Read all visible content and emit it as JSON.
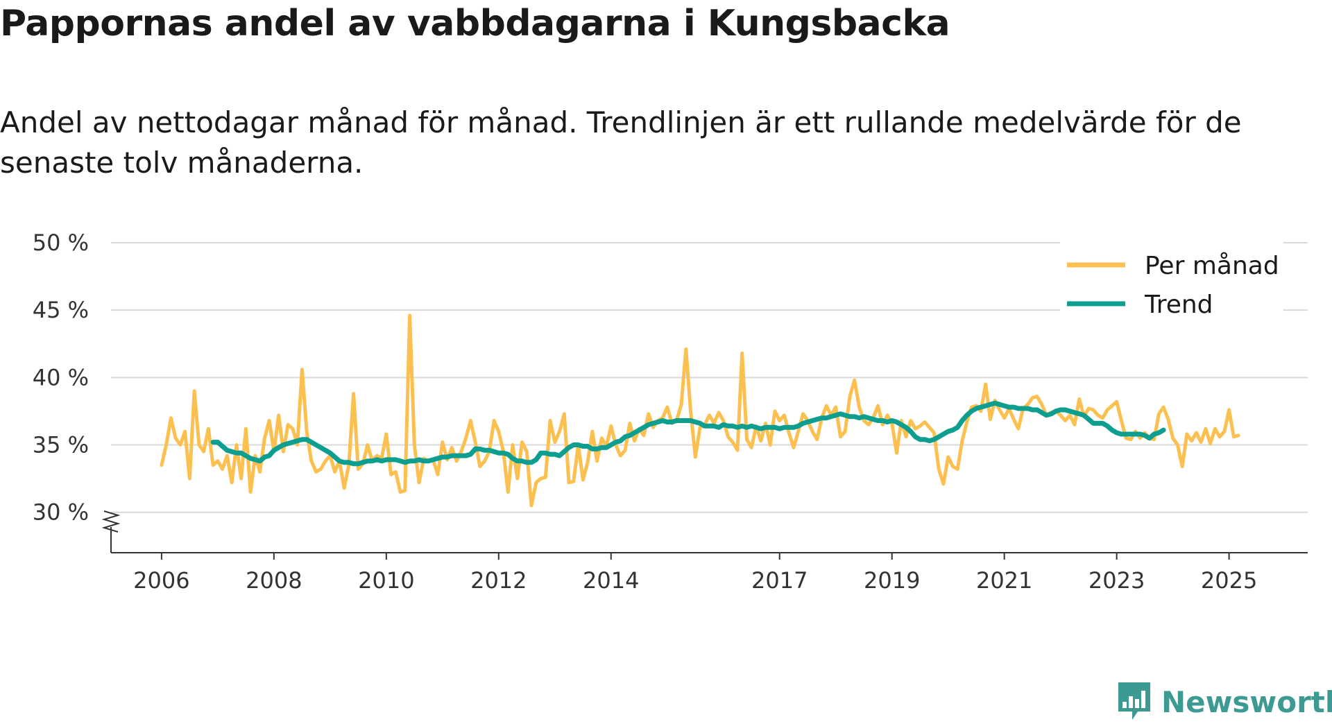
{
  "brand": {
    "name": "Newsworthy",
    "icon": "newsworthy-logo-icon",
    "color": "#3d9a93"
  },
  "colors": {
    "monthly": "#fbc04f",
    "trend": "#0e9e8f",
    "grid": "#d9d9d9",
    "axis": "#333333"
  },
  "chart_data": {
    "type": "line",
    "title": "Pappornas andel av vabbdagarna i Kungsbacka",
    "subtitle": "Andel av nettodagar månad för månad. Trendlinjen är ett rullande medelvärde för de senaste tolv månaderna.",
    "xlabel": "",
    "ylabel": "",
    "x_start": "2006-01",
    "xlim": [
      2005.1,
      2026.4
    ],
    "ylim": [
      27,
      50
    ],
    "y_ticks": [
      30,
      35,
      40,
      45,
      50
    ],
    "y_tick_labels": [
      "30 %",
      "35 %",
      "40 %",
      "45 %",
      "50 %"
    ],
    "x_ticks": [
      2006,
      2008,
      2010,
      2012,
      2014,
      2017,
      2019,
      2021,
      2023,
      2025
    ],
    "x_tick_labels": [
      "2006",
      "2008",
      "2010",
      "2012",
      "2014",
      "2017",
      "2019",
      "2021",
      "2023",
      "2025"
    ],
    "axis_break": true,
    "grid": true,
    "legend": {
      "position": "top-right",
      "entries": [
        "Per månad",
        "Trend"
      ]
    },
    "series": [
      {
        "name": "Per månad",
        "values": [
          33.5,
          35.0,
          37.0,
          35.5,
          35.0,
          36.0,
          32.5,
          39.0,
          35.0,
          34.5,
          36.2,
          33.5,
          33.8,
          33.2,
          34.2,
          32.2,
          35.0,
          32.5,
          36.2,
          31.5,
          34.2,
          33.0,
          35.5,
          36.8,
          34.5,
          37.2,
          34.5,
          36.5,
          36.2,
          35.0,
          40.6,
          36.0,
          33.8,
          33.0,
          33.2,
          33.8,
          34.2,
          33.0,
          33.8,
          31.8,
          33.5,
          38.8,
          33.2,
          33.6,
          35.0,
          33.8,
          34.2,
          34.0,
          35.8,
          32.8,
          33.0,
          31.5,
          31.6,
          44.6,
          35.0,
          32.2,
          34.0,
          33.8,
          33.9,
          32.8,
          35.2,
          33.9,
          34.8,
          33.8,
          34.5,
          35.5,
          36.8,
          35.2,
          33.4,
          33.8,
          34.5,
          36.8,
          36.0,
          34.5,
          31.5,
          35.0,
          32.5,
          35.2,
          34.5,
          30.5,
          32.2,
          32.5,
          32.6,
          36.8,
          35.2,
          36.0,
          37.3,
          32.2,
          32.3,
          35.0,
          32.4,
          33.7,
          36.0,
          33.8,
          35.5,
          34.9,
          36.4,
          35.0,
          34.2,
          34.6,
          36.6,
          35.3,
          36.2,
          35.7,
          37.3,
          36.3,
          36.8,
          37.0,
          37.8,
          36.6,
          36.8,
          38.0,
          42.1,
          37.5,
          34.1,
          36.3,
          36.5,
          37.2,
          36.6,
          37.4,
          36.8,
          35.6,
          35.2,
          34.6,
          41.8,
          35.4,
          34.8,
          36.4,
          35.3,
          36.6,
          35.0,
          37.5,
          36.8,
          37.2,
          35.9,
          34.8,
          36.0,
          37.3,
          36.8,
          36.0,
          35.4,
          37.0,
          37.9,
          37.2,
          37.8,
          35.6,
          36.0,
          38.6,
          39.8,
          37.8,
          36.8,
          36.5,
          37.0,
          37.9,
          36.5,
          37.2,
          36.6,
          34.4,
          36.8,
          35.6,
          36.8,
          36.2,
          36.4,
          36.7,
          36.3,
          35.9,
          33.2,
          32.1,
          34.1,
          33.4,
          33.2,
          35.3,
          36.7,
          37.8,
          37.9,
          37.5,
          39.5,
          36.9,
          38.3,
          37.6,
          37.0,
          37.7,
          36.9,
          36.2,
          37.7,
          38.0,
          38.5,
          38.6,
          38.0,
          37.2,
          37.4,
          37.5,
          37.2,
          36.8,
          37.2,
          36.5,
          38.4,
          37.1,
          37.7,
          37.6,
          37.2,
          37.0,
          37.6,
          37.9,
          38.2,
          36.8,
          35.5,
          35.4,
          36.0,
          35.5,
          35.9,
          35.5,
          35.4,
          37.3,
          37.8,
          36.9,
          35.5,
          35.0,
          33.4,
          35.8,
          35.3,
          35.9,
          35.2,
          36.2,
          35.1,
          36.2,
          35.6,
          36.0,
          37.6,
          35.6,
          35.7
        ]
      },
      {
        "name": "Trend",
        "start_index": 11,
        "values": [
          35.2,
          35.2,
          34.9,
          34.6,
          34.5,
          34.4,
          34.4,
          34.2,
          34.0,
          33.9,
          33.8,
          34.1,
          34.2,
          34.6,
          34.8,
          35.0,
          35.1,
          35.2,
          35.3,
          35.4,
          35.4,
          35.2,
          35.0,
          34.8,
          34.6,
          34.4,
          34.1,
          33.8,
          33.7,
          33.7,
          33.6,
          33.6,
          33.7,
          33.8,
          33.8,
          33.9,
          33.8,
          33.9,
          33.9,
          33.9,
          33.8,
          33.7,
          33.8,
          33.8,
          33.9,
          33.8,
          33.8,
          33.9,
          34.0,
          34.1,
          34.1,
          34.2,
          34.2,
          34.2,
          34.2,
          34.3,
          34.7,
          34.7,
          34.6,
          34.6,
          34.5,
          34.4,
          34.4,
          34.3,
          34.0,
          33.8,
          33.8,
          33.7,
          33.7,
          33.9,
          34.4,
          34.4,
          34.3,
          34.3,
          34.2,
          34.5,
          34.8,
          35.0,
          35.0,
          34.9,
          34.9,
          34.7,
          34.7,
          34.8,
          34.8,
          35.0,
          35.2,
          35.3,
          35.6,
          35.7,
          35.9,
          36.1,
          36.3,
          36.5,
          36.6,
          36.7,
          36.8,
          36.7,
          36.7,
          36.8,
          36.8,
          36.8,
          36.8,
          36.7,
          36.6,
          36.4,
          36.4,
          36.4,
          36.3,
          36.5,
          36.4,
          36.4,
          36.3,
          36.4,
          36.3,
          36.4,
          36.3,
          36.2,
          36.3,
          36.3,
          36.3,
          36.2,
          36.3,
          36.3,
          36.3,
          36.4,
          36.6,
          36.7,
          36.8,
          36.9,
          37.0,
          37.0,
          37.1,
          37.2,
          37.3,
          37.2,
          37.1,
          37.1,
          37.0,
          37.1,
          37.0,
          36.9,
          36.8,
          36.8,
          36.7,
          36.8,
          36.7,
          36.5,
          36.3,
          36.0,
          35.6,
          35.4,
          35.4,
          35.3,
          35.4,
          35.6,
          35.8,
          36.0,
          36.1,
          36.3,
          36.8,
          37.2,
          37.5,
          37.7,
          37.8,
          37.9,
          38.0,
          38.1,
          38.0,
          37.9,
          37.8,
          37.8,
          37.7,
          37.7,
          37.7,
          37.6,
          37.6,
          37.4,
          37.2,
          37.3,
          37.5,
          37.6,
          37.6,
          37.5,
          37.4,
          37.3,
          37.2,
          36.9,
          36.6,
          36.6,
          36.6,
          36.4,
          36.1,
          35.9,
          35.8,
          35.8,
          35.8,
          35.8,
          35.8,
          35.7,
          35.5,
          35.8,
          35.9,
          36.1
        ]
      }
    ]
  }
}
